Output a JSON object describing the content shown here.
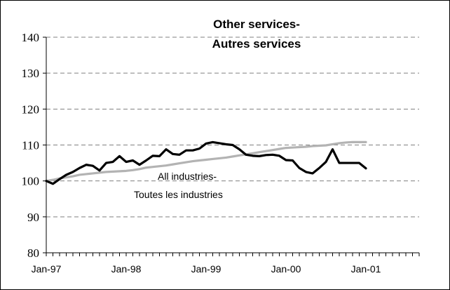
{
  "chart_data": {
    "type": "line",
    "title_line1": "Other services-",
    "title_line2": "Autres services",
    "xlabel": "",
    "ylabel": "",
    "ylim": [
      80,
      140
    ],
    "yticks": [
      "80",
      "90",
      "100",
      "110",
      "120",
      "130",
      "140"
    ],
    "x_tick_labels": [
      "Jan-97",
      "Jan-98",
      "Jan-99",
      "Jan-00",
      "Jan-01"
    ],
    "x_range": [
      "Jan-97",
      "Sep-01"
    ],
    "grid": "horizontal dashed",
    "annotation_line1": "All industries-",
    "annotation_line2": "Toutes les industries",
    "x": [
      "Jan-97",
      "Feb-97",
      "Mar-97",
      "Apr-97",
      "May-97",
      "Jun-97",
      "Jul-97",
      "Aug-97",
      "Sep-97",
      "Oct-97",
      "Nov-97",
      "Dec-97",
      "Jan-98",
      "Feb-98",
      "Mar-98",
      "Apr-98",
      "May-98",
      "Jun-98",
      "Jul-98",
      "Aug-98",
      "Sep-98",
      "Oct-98",
      "Nov-98",
      "Dec-98",
      "Jan-99",
      "Feb-99",
      "Mar-99",
      "Apr-99",
      "May-99",
      "Jun-99",
      "Jul-99",
      "Aug-99",
      "Sep-99",
      "Oct-99",
      "Nov-99",
      "Dec-99",
      "Jan-00",
      "Feb-00",
      "Mar-00",
      "Apr-00",
      "May-00",
      "Jun-00",
      "Jul-00",
      "Aug-00",
      "Sep-00",
      "Oct-00",
      "Nov-00",
      "Dec-00",
      "Jan-01"
    ],
    "series": [
      {
        "color": "#000000",
        "values": [
          100,
          99.2,
          100.5,
          101.7,
          102.5,
          103.6,
          104.5,
          104.2,
          102.9,
          105.0,
          105.3,
          106.9,
          105.3,
          105.7,
          104.5,
          105.7,
          107.0,
          106.9,
          108.8,
          107.5,
          107.3,
          108.5,
          108.5,
          109.0,
          110.4,
          110.8,
          110.5,
          110.2,
          110.0,
          108.8,
          107.3,
          107.0,
          106.9,
          107.2,
          107.3,
          107.0,
          105.8,
          105.7,
          103.6,
          102.5,
          102.1,
          103.6,
          105.3,
          108.8,
          105.0,
          105.0,
          105.0,
          105.0,
          103.5
        ]
      },
      {
        "color": "#b3b3b3",
        "values": [
          100,
          100.3,
          100.7,
          101.0,
          101.3,
          101.7,
          101.9,
          102.1,
          102.3,
          102.5,
          102.6,
          102.7,
          102.8,
          103.0,
          103.3,
          103.7,
          103.9,
          104.1,
          104.3,
          104.6,
          104.9,
          105.2,
          105.5,
          105.7,
          105.9,
          106.1,
          106.3,
          106.5,
          106.8,
          107.1,
          107.4,
          107.7,
          108.0,
          108.3,
          108.6,
          108.9,
          109.2,
          109.3,
          109.4,
          109.5,
          109.7,
          109.8,
          109.9,
          110.2,
          110.5,
          110.7,
          110.8,
          110.8,
          110.8
        ]
      }
    ]
  }
}
